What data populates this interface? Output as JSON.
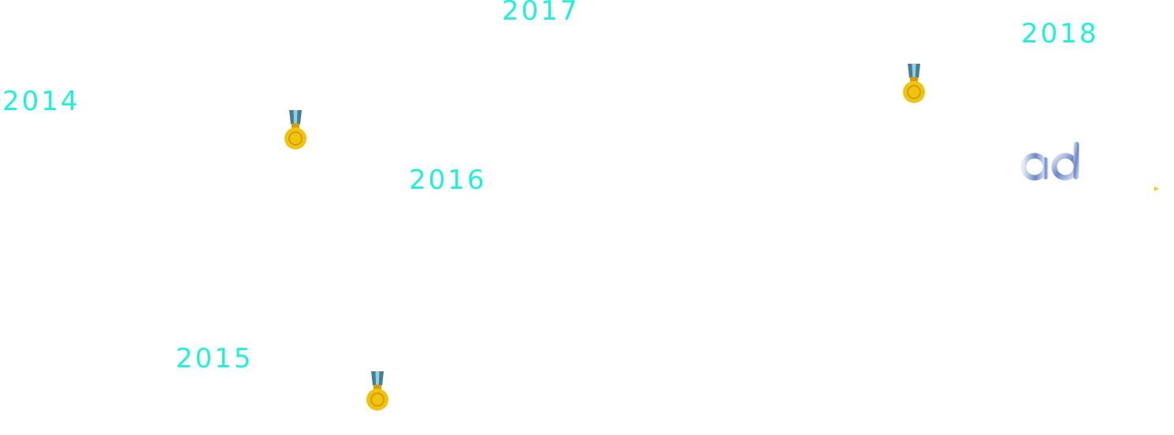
{
  "timeline": {
    "accent_color": "#1ef1d8",
    "years": {
      "y2014": "2014",
      "y2015": "2015",
      "y2016": "2016",
      "y2017": "2017",
      "y2018": "2018"
    },
    "medal_icon": "medal-icon",
    "medal_colors": {
      "ribbon": "#4a7d93",
      "ribbon_stripe": "#8bd1de",
      "gold": "#f0c40e",
      "gold_dark": "#d69b08"
    }
  },
  "logo": {
    "icon": "ad-logo-icon",
    "colors": {
      "light": "#e4ebf7",
      "dark": "#6a86c6"
    }
  },
  "marker": {
    "icon": "small-arrow-icon",
    "color": "#f2c81c"
  }
}
